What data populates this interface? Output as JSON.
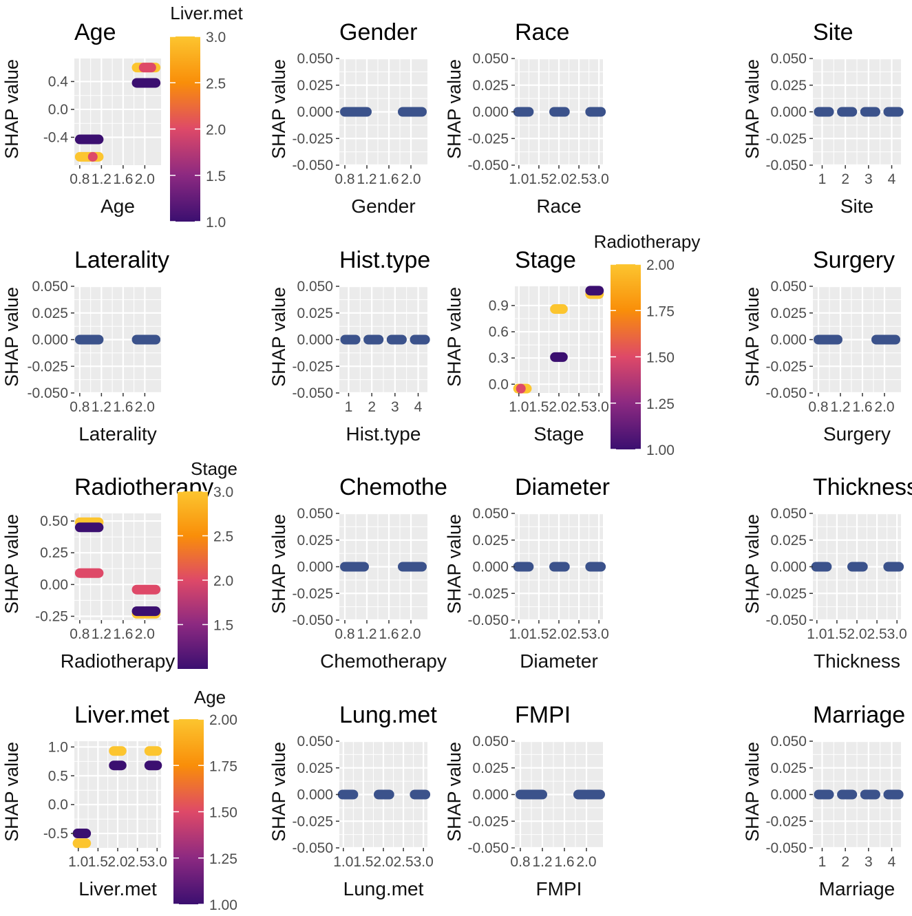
{
  "figure": {
    "y_label": "SHAP value"
  },
  "colors": {
    "panel_bg": "#ebebeb",
    "grid": "#ffffff",
    "neutral_point": "#3b528b",
    "gradient": [
      "#3b0f70",
      "#8c2981",
      "#de4968",
      "#f98e09",
      "#fcc52f"
    ]
  },
  "chart_data": [
    {
      "type": "scatter",
      "title": "Age",
      "xlabel": "Age",
      "ylabel": "SHAP value",
      "xticks": [
        "0.8",
        "1.2",
        "1.6",
        "2.0"
      ],
      "xtick_values": [
        0.8,
        1.2,
        1.6,
        2.0
      ],
      "xlim": [
        0.7,
        2.3
      ],
      "yticks": [
        "-0.4",
        "0.0",
        "0.4"
      ],
      "ytick_values": [
        -0.4,
        0.0,
        0.4
      ],
      "ylim": [
        -0.8,
        0.73
      ],
      "series": [
        {
          "x": [
            0.8,
            1.15
          ],
          "y": -0.43,
          "c": 1.0
        },
        {
          "x": [
            0.8,
            1.15
          ],
          "y": -0.68,
          "c": 3.0
        },
        {
          "x": [
            1.04,
            1.04
          ],
          "y": -0.68,
          "c": 2.0
        },
        {
          "x": [
            1.85,
            2.2
          ],
          "y": 0.38,
          "c": 1.0
        },
        {
          "x": [
            1.85,
            2.2
          ],
          "y": 0.6,
          "c": 3.0
        },
        {
          "x": [
            1.98,
            2.12
          ],
          "y": 0.6,
          "c": 2.0
        }
      ],
      "legend": {
        "title": "Liver.met",
        "labels": [
          "3.0",
          "2.5",
          "2.0",
          "1.5",
          "1.0"
        ],
        "values": [
          3.0,
          2.5,
          2.0,
          1.5,
          1.0
        ],
        "range": [
          1.0,
          3.0
        ]
      }
    },
    {
      "type": "scatter",
      "title": "Gender",
      "xlabel": "Gender",
      "ylabel": "SHAP value",
      "xticks": [
        "0.8",
        "1.2",
        "1.6",
        "2.0"
      ],
      "xtick_values": [
        0.8,
        1.2,
        1.6,
        2.0
      ],
      "xlim": [
        0.7,
        2.3
      ],
      "yticks": [
        "0.050",
        "0.025",
        "0.000",
        "-0.025",
        "-0.050"
      ],
      "ytick_values": [
        0.05,
        0.025,
        0.0,
        -0.025,
        -0.05
      ],
      "ylim": [
        -0.05,
        0.05
      ],
      "series": [
        {
          "x": [
            0.8,
            1.2
          ],
          "y": 0.0
        },
        {
          "x": [
            1.85,
            2.2
          ],
          "y": 0.0
        }
      ]
    },
    {
      "type": "scatter",
      "title": "Race",
      "xlabel": "Race",
      "ylabel": "SHAP value",
      "xticks": [
        "1.0",
        "1.5",
        "2.0",
        "2.5",
        "3.0"
      ],
      "xtick_values": [
        1.0,
        1.5,
        2.0,
        2.5,
        3.0
      ],
      "xlim": [
        0.9,
        3.1
      ],
      "yticks": [
        "0.050",
        "0.025",
        "0.000",
        "-0.025",
        "-0.050"
      ],
      "ytick_values": [
        0.05,
        0.025,
        0.0,
        -0.025,
        -0.05
      ],
      "ylim": [
        -0.05,
        0.05
      ],
      "series": [
        {
          "x": [
            0.98,
            1.25
          ],
          "y": 0.0
        },
        {
          "x": [
            1.88,
            2.15
          ],
          "y": 0.0
        },
        {
          "x": [
            2.78,
            3.05
          ],
          "y": 0.0
        }
      ]
    },
    {
      "type": "scatter",
      "title": "Site",
      "xlabel": "Site",
      "ylabel": "SHAP value",
      "xticks": [
        "1",
        "2",
        "3",
        "4"
      ],
      "xtick_values": [
        1,
        2,
        3,
        4
      ],
      "xlim": [
        0.6,
        4.4
      ],
      "yticks": [
        "0.050",
        "0.025",
        "0.000",
        "-0.025",
        "-0.050"
      ],
      "ytick_values": [
        0.05,
        0.025,
        0.0,
        -0.025,
        -0.05
      ],
      "ylim": [
        -0.05,
        0.05
      ],
      "series": [
        {
          "x": [
            0.85,
            1.3
          ],
          "y": 0.0
        },
        {
          "x": [
            1.85,
            2.3
          ],
          "y": 0.0
        },
        {
          "x": [
            2.85,
            3.3
          ],
          "y": 0.0
        },
        {
          "x": [
            3.85,
            4.3
          ],
          "y": 0.0
        }
      ]
    },
    {
      "type": "scatter",
      "title": "Laterality",
      "xlabel": "Laterality",
      "ylabel": "SHAP value",
      "xticks": [
        "0.8",
        "1.2",
        "1.6",
        "2.0"
      ],
      "xtick_values": [
        0.8,
        1.2,
        1.6,
        2.0
      ],
      "xlim": [
        0.7,
        2.3
      ],
      "yticks": [
        "0.050",
        "0.025",
        "0.000",
        "-0.025",
        "-0.050"
      ],
      "ytick_values": [
        0.05,
        0.025,
        0.0,
        -0.025,
        -0.05
      ],
      "ylim": [
        -0.05,
        0.05
      ],
      "series": [
        {
          "x": [
            0.8,
            1.15
          ],
          "y": 0.0
        },
        {
          "x": [
            1.85,
            2.2
          ],
          "y": 0.0
        }
      ]
    },
    {
      "type": "scatter",
      "title": "Hist.type",
      "xlabel": "Hist.type",
      "ylabel": "SHAP value",
      "xticks": [
        "1",
        "2",
        "3",
        "4"
      ],
      "xtick_values": [
        1,
        2,
        3,
        4
      ],
      "xlim": [
        0.6,
        4.4
      ],
      "yticks": [
        "0.050",
        "0.025",
        "0.000",
        "-0.025",
        "-0.050"
      ],
      "ytick_values": [
        0.05,
        0.025,
        0.0,
        -0.025,
        -0.05
      ],
      "ylim": [
        -0.05,
        0.05
      ],
      "series": [
        {
          "x": [
            0.85,
            1.3
          ],
          "y": 0.0
        },
        {
          "x": [
            1.85,
            2.3
          ],
          "y": 0.0
        },
        {
          "x": [
            2.85,
            3.3
          ],
          "y": 0.0
        },
        {
          "x": [
            3.85,
            4.3
          ],
          "y": 0.0
        }
      ]
    },
    {
      "type": "scatter",
      "title": "Stage",
      "xlabel": "Stage",
      "ylabel": "SHAP value",
      "xticks": [
        "1.0",
        "1.5",
        "2.0",
        "2.5",
        "3.0"
      ],
      "xtick_values": [
        1.0,
        1.5,
        2.0,
        2.5,
        3.0
      ],
      "xlim": [
        0.9,
        3.1
      ],
      "yticks": [
        "0.9",
        "0.6",
        "0.3",
        "0.0"
      ],
      "ytick_values": [
        0.9,
        0.6,
        0.3,
        0.0
      ],
      "ylim": [
        -0.1,
        1.12
      ],
      "series": [
        {
          "x": [
            0.98,
            1.2
          ],
          "y": -0.05,
          "c": 2.0
        },
        {
          "x": [
            1.05,
            1.05
          ],
          "y": -0.05,
          "c": 1.5
        },
        {
          "x": [
            1.9,
            2.1
          ],
          "y": 0.31,
          "c": 1.0
        },
        {
          "x": [
            1.9,
            2.1
          ],
          "y": 0.86,
          "c": 2.0
        },
        {
          "x": [
            2.78,
            3.0
          ],
          "y": 1.03,
          "c": 2.0
        },
        {
          "x": [
            2.78,
            3.0
          ],
          "y": 1.07,
          "c": 1.0
        }
      ],
      "legend": {
        "title": "Radiotherapy",
        "labels": [
          "2.00",
          "1.75",
          "1.50",
          "1.25",
          "1.00"
        ],
        "values": [
          2.0,
          1.75,
          1.5,
          1.25,
          1.0
        ],
        "range": [
          1.0,
          2.0
        ]
      }
    },
    {
      "type": "scatter",
      "title": "Surgery",
      "xlabel": "Surgery",
      "ylabel": "SHAP value",
      "xticks": [
        "0.8",
        "1.2",
        "1.6",
        "2.0"
      ],
      "xtick_values": [
        0.8,
        1.2,
        1.6,
        2.0
      ],
      "xlim": [
        0.7,
        2.3
      ],
      "yticks": [
        "0.050",
        "0.025",
        "0.000",
        "-0.025",
        "-0.050"
      ],
      "ytick_values": [
        0.05,
        0.025,
        0.0,
        -0.025,
        -0.05
      ],
      "ylim": [
        -0.05,
        0.05
      ],
      "series": [
        {
          "x": [
            0.8,
            1.15
          ],
          "y": 0.0
        },
        {
          "x": [
            1.85,
            2.2
          ],
          "y": 0.0
        }
      ]
    },
    {
      "type": "scatter",
      "title": "Radiotherapy",
      "xlabel": "Radiotherapy",
      "ylabel": "SHAP value",
      "xticks": [
        "0.8",
        "1.2",
        "1.6",
        "2.0"
      ],
      "xtick_values": [
        0.8,
        1.2,
        1.6,
        2.0
      ],
      "xlim": [
        0.7,
        2.3
      ],
      "yticks": [
        "0.50",
        "0.25",
        "0.00",
        "-0.25"
      ],
      "ytick_values": [
        0.5,
        0.25,
        0.0,
        -0.25
      ],
      "ylim": [
        -0.28,
        0.56
      ],
      "series": [
        {
          "x": [
            0.8,
            1.15
          ],
          "y": 0.49,
          "c": 3.0
        },
        {
          "x": [
            0.8,
            1.15
          ],
          "y": 0.45,
          "c": 1.0
        },
        {
          "x": [
            0.8,
            1.15
          ],
          "y": 0.09,
          "c": 2.0
        },
        {
          "x": [
            1.85,
            2.2
          ],
          "y": -0.04,
          "c": 2.0
        },
        {
          "x": [
            1.85,
            2.2
          ],
          "y": -0.23,
          "c": 3.0
        },
        {
          "x": [
            1.85,
            2.2
          ],
          "y": -0.21,
          "c": 1.0
        }
      ],
      "legend": {
        "title": "Stage",
        "labels": [
          "3.0",
          "2.5",
          "2.0",
          "1.5"
        ],
        "values": [
          3.0,
          2.5,
          2.0,
          1.5
        ],
        "range": [
          1.0,
          3.0
        ]
      }
    },
    {
      "type": "scatter",
      "title": "Chemothe",
      "xlabel": "Chemotherapy",
      "ylabel": "SHAP value",
      "xticks": [
        "0.8",
        "1.2",
        "1.6",
        "2.0"
      ],
      "xtick_values": [
        0.8,
        1.2,
        1.6,
        2.0
      ],
      "xlim": [
        0.7,
        2.3
      ],
      "yticks": [
        "0.050",
        "0.025",
        "0.000",
        "-0.025",
        "-0.050"
      ],
      "ytick_values": [
        0.05,
        0.025,
        0.0,
        -0.025,
        -0.05
      ],
      "ylim": [
        -0.05,
        0.05
      ],
      "series": [
        {
          "x": [
            0.8,
            1.15
          ],
          "y": 0.0
        },
        {
          "x": [
            1.85,
            2.2
          ],
          "y": 0.0
        }
      ]
    },
    {
      "type": "scatter",
      "title": "Diameter",
      "xlabel": "Diameter",
      "ylabel": "SHAP value",
      "xticks": [
        "1.0",
        "1.5",
        "2.0",
        "2.5",
        "3.0"
      ],
      "xtick_values": [
        1.0,
        1.5,
        2.0,
        2.5,
        3.0
      ],
      "xlim": [
        0.9,
        3.1
      ],
      "yticks": [
        "0.050",
        "0.025",
        "0.000",
        "-0.025",
        "-0.050"
      ],
      "ytick_values": [
        0.05,
        0.025,
        0.0,
        -0.025,
        -0.05
      ],
      "ylim": [
        -0.05,
        0.05
      ],
      "series": [
        {
          "x": [
            0.98,
            1.25
          ],
          "y": 0.0
        },
        {
          "x": [
            1.88,
            2.15
          ],
          "y": 0.0
        },
        {
          "x": [
            2.78,
            3.05
          ],
          "y": 0.0
        }
      ]
    },
    {
      "type": "scatter",
      "title": "Thickness",
      "xlabel": "Thickness",
      "ylabel": "SHAP value",
      "xticks": [
        "1.0",
        "1.5",
        "2.0",
        "2.5",
        "3.0"
      ],
      "xtick_values": [
        1.0,
        1.5,
        2.0,
        2.5,
        3.0
      ],
      "xlim": [
        0.9,
        3.1
      ],
      "yticks": [
        "0.050",
        "0.025",
        "0.000",
        "-0.025",
        "-0.050"
      ],
      "ytick_values": [
        0.05,
        0.025,
        0.0,
        -0.025,
        -0.05
      ],
      "ylim": [
        -0.05,
        0.05
      ],
      "series": [
        {
          "x": [
            0.98,
            1.25
          ],
          "y": 0.0
        },
        {
          "x": [
            1.88,
            2.15
          ],
          "y": 0.0
        },
        {
          "x": [
            2.78,
            3.05
          ],
          "y": 0.0
        }
      ]
    },
    {
      "type": "scatter",
      "title": "Liver.met",
      "xlabel": "Liver.met",
      "ylabel": "SHAP value",
      "xticks": [
        "1.0",
        "1.5",
        "2.0",
        "2.5",
        "3.0"
      ],
      "xtick_values": [
        1.0,
        1.5,
        2.0,
        2.5,
        3.0
      ],
      "xlim": [
        0.9,
        3.1
      ],
      "yticks": [
        "1.0",
        "0.5",
        "0.0",
        "-0.5"
      ],
      "ytick_values": [
        1.0,
        0.5,
        0.0,
        -0.5
      ],
      "ylim": [
        -0.75,
        1.1
      ],
      "series": [
        {
          "x": [
            0.98,
            1.2
          ],
          "y": -0.5,
          "c": 1.0
        },
        {
          "x": [
            0.98,
            1.2
          ],
          "y": -0.67,
          "c": 2.0
        },
        {
          "x": [
            1.9,
            2.1
          ],
          "y": 0.93,
          "c": 2.0
        },
        {
          "x": [
            1.9,
            2.1
          ],
          "y": 0.68,
          "c": 1.0
        },
        {
          "x": [
            2.8,
            3.0
          ],
          "y": 0.93,
          "c": 2.0
        },
        {
          "x": [
            2.8,
            3.0
          ],
          "y": 0.68,
          "c": 1.0
        }
      ],
      "legend": {
        "title": "Age",
        "labels": [
          "2.00",
          "1.75",
          "1.50",
          "1.25",
          "1.00"
        ],
        "values": [
          2.0,
          1.75,
          1.5,
          1.25,
          1.0
        ],
        "range": [
          1.0,
          2.0
        ]
      }
    },
    {
      "type": "scatter",
      "title": "Lung.met",
      "xlabel": "Lung.met",
      "ylabel": "SHAP value",
      "xticks": [
        "1.0",
        "1.5",
        "2.0",
        "2.5",
        "3.0"
      ],
      "xtick_values": [
        1.0,
        1.5,
        2.0,
        2.5,
        3.0
      ],
      "xlim": [
        0.9,
        3.1
      ],
      "yticks": [
        "0.050",
        "0.025",
        "0.000",
        "-0.025",
        "-0.050"
      ],
      "ytick_values": [
        0.05,
        0.025,
        0.0,
        -0.025,
        -0.05
      ],
      "ylim": [
        -0.05,
        0.05
      ],
      "series": [
        {
          "x": [
            0.98,
            1.25
          ],
          "y": 0.0
        },
        {
          "x": [
            1.88,
            2.15
          ],
          "y": 0.0
        },
        {
          "x": [
            2.78,
            3.05
          ],
          "y": 0.0
        }
      ]
    },
    {
      "type": "scatter",
      "title": "FMPI",
      "xlabel": "FMPI",
      "ylabel": "SHAP value",
      "xticks": [
        "0.8",
        "1.2",
        "1.6",
        "2.0"
      ],
      "xtick_values": [
        0.8,
        1.2,
        1.6,
        2.0
      ],
      "xlim": [
        0.7,
        2.3
      ],
      "yticks": [
        "0.050",
        "0.025",
        "0.000",
        "-0.025",
        "-0.050"
      ],
      "ytick_values": [
        0.05,
        0.025,
        0.0,
        -0.025,
        -0.05
      ],
      "ylim": [
        -0.05,
        0.05
      ],
      "series": [
        {
          "x": [
            0.8,
            1.2
          ],
          "y": 0.0
        },
        {
          "x": [
            1.85,
            2.25
          ],
          "y": 0.0
        }
      ]
    },
    {
      "type": "scatter",
      "title": "Marriage",
      "xlabel": "Marriage",
      "ylabel": "SHAP value",
      "xticks": [
        "1",
        "2",
        "3",
        "4"
      ],
      "xtick_values": [
        1,
        2,
        3,
        4
      ],
      "xlim": [
        0.6,
        4.4
      ],
      "yticks": [
        "0.050",
        "0.025",
        "0.000",
        "-0.025",
        "-0.050"
      ],
      "ytick_values": [
        0.05,
        0.025,
        0.0,
        -0.025,
        -0.05
      ],
      "ylim": [
        -0.05,
        0.05
      ],
      "series": [
        {
          "x": [
            0.85,
            1.3
          ],
          "y": 0.0
        },
        {
          "x": [
            1.85,
            2.3
          ],
          "y": 0.0
        },
        {
          "x": [
            2.85,
            3.3
          ],
          "y": 0.0
        },
        {
          "x": [
            3.85,
            4.3
          ],
          "y": 0.0
        }
      ]
    }
  ]
}
